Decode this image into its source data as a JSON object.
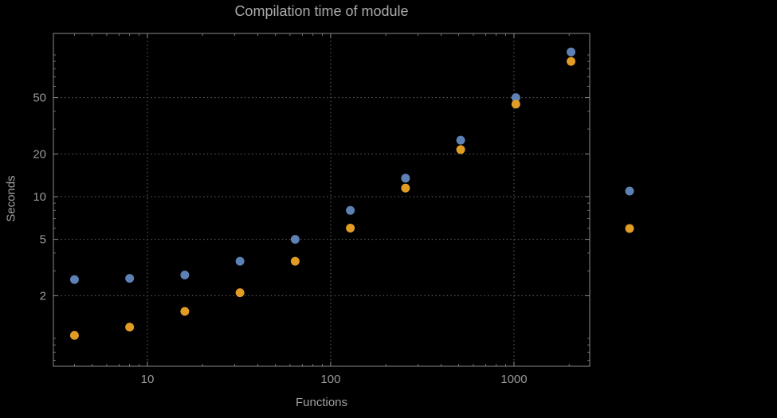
{
  "chart_data": {
    "type": "scatter",
    "title": "Compilation time of module",
    "xlabel": "Functions",
    "ylabel": "Seconds",
    "x_scale": "log",
    "y_scale": "log",
    "xlim": [
      3.07,
      2590
    ],
    "ylim": [
      0.636,
      141.8
    ],
    "x_ticks": [
      10,
      100,
      1000
    ],
    "y_ticks": [
      2,
      5,
      10,
      20,
      50
    ],
    "grid": "dotted",
    "legend_position": "right-outside",
    "x": [
      4,
      8,
      16,
      32,
      64,
      128,
      256,
      512,
      1024,
      2048
    ],
    "series": [
      {
        "name": "series-blue",
        "color": "#5e81b5",
        "values": [
          2.6,
          2.65,
          2.8,
          3.5,
          5.0,
          8.0,
          13.5,
          25,
          50,
          105
        ]
      },
      {
        "name": "series-orange",
        "color": "#e19c24",
        "values": [
          1.05,
          1.2,
          1.55,
          2.1,
          3.5,
          6.0,
          11.5,
          21.5,
          45,
          90
        ]
      }
    ],
    "legend_markers": [
      {
        "name": "legend-marker-blue",
        "color": "#5e81b5"
      },
      {
        "name": "legend-marker-orange",
        "color": "#e19c24"
      }
    ],
    "colors": {
      "background": "#000000",
      "frame": "#8a8a8a",
      "grid": "#666666",
      "title": "#ababab",
      "tick_labels": "#9a9a9a",
      "axis_labels": "#a0a0a0"
    }
  }
}
